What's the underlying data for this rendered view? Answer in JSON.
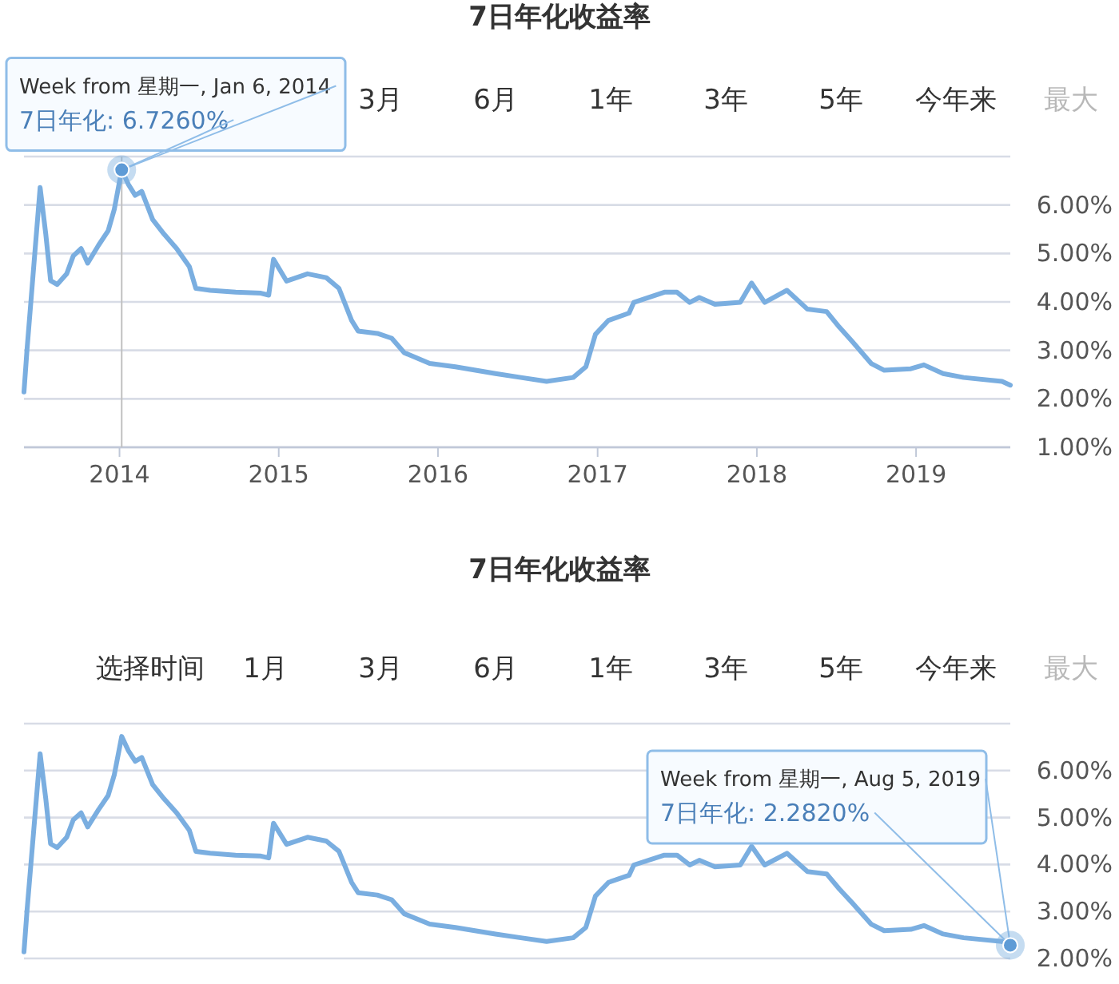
{
  "chart_data": [
    {
      "type": "line",
      "title": "7日年化收益率",
      "grid": "y",
      "marker": "none",
      "line_style": "solid",
      "annotations": [
        "3月",
        "6月",
        "1年",
        "3年",
        "5年",
        "今年来",
        "最大",
        {
          "text": "Week from 星期一, Jan 6, 2014",
          "x": "2014-01-06",
          "y": 6.726
        },
        {
          "text": "7日年化: 6.7260%",
          "x": "2014-01-06",
          "y": 6.726
        }
      ],
      "ref_lines": [
        {
          "axis": "x",
          "value": "2014-01-06",
          "color": "#c0c0c0"
        }
      ],
      "xlim": [
        "2013-05-27",
        "2019-08-05"
      ],
      "xticks": [
        {
          "value": "2014-01-01",
          "label": "2014"
        },
        {
          "value": "2015-01-01",
          "label": "2015"
        },
        {
          "value": "2016-01-01",
          "label": "2016"
        },
        {
          "value": "2017-01-01",
          "label": "2017"
        },
        {
          "value": "2018-01-01",
          "label": "2018"
        },
        {
          "value": "2019-01-01",
          "label": "2019"
        }
      ],
      "ylim": [
        1,
        7
      ],
      "yticks": [
        {
          "value": 1,
          "label": "1.00%"
        },
        {
          "value": 2,
          "label": "2.00%"
        },
        {
          "value": 3,
          "label": "3.00%"
        },
        {
          "value": 4,
          "label": "4.00%"
        },
        {
          "value": 5,
          "label": "5.00%"
        },
        {
          "value": 6,
          "label": "6.00%"
        },
        {
          "value": 7,
          "label": null
        }
      ],
      "x": [
        "2013-05-27",
        "2013-06-03",
        "2013-07-03",
        "2013-07-16",
        "2013-07-27",
        "2013-08-11",
        "2013-09-02",
        "2013-09-17",
        "2013-10-05",
        "2013-10-20",
        "2013-11-14",
        "2013-12-06",
        "2013-12-20",
        "2014-01-06",
        "2014-01-21",
        "2014-02-06",
        "2014-02-21",
        "2014-03-18",
        "2014-04-13",
        "2014-05-12",
        "2014-06-10",
        "2014-06-25",
        "2014-07-28",
        "2014-09-24",
        "2014-11-21",
        "2014-12-09",
        "2014-12-20",
        "2015-01-19",
        "2015-03-08",
        "2015-04-20",
        "2015-05-19",
        "2015-06-17",
        "2015-07-02",
        "2015-08-15",
        "2015-09-17",
        "2015-10-16",
        "2015-12-13",
        "2016-02-10",
        "2016-05-12",
        "2016-07-09",
        "2016-09-06",
        "2016-11-06",
        "2016-12-05",
        "2016-12-27",
        "2017-01-26",
        "2017-03-14",
        "2017-03-25",
        "2017-06-03",
        "2017-07-02",
        "2017-07-31",
        "2017-08-22",
        "2017-09-27",
        "2017-11-24",
        "2017-12-20",
        "2018-01-19",
        "2018-03-11",
        "2018-04-27",
        "2018-06-10",
        "2018-07-09",
        "2018-08-08",
        "2018-09-20",
        "2018-10-20",
        "2018-12-20",
        "2019-01-19",
        "2019-03-04",
        "2019-04-20",
        "2019-07-17",
        "2019-08-05"
      ],
      "series": [
        {
          "color": "#7aaee0",
          "values": [
            2.14,
            3.02,
            6.36,
            5.4,
            4.44,
            4.36,
            4.58,
            4.95,
            5.1,
            4.8,
            5.17,
            5.47,
            5.91,
            6.726,
            6.43,
            6.2,
            6.28,
            5.7,
            5.4,
            5.1,
            4.73,
            4.28,
            4.24,
            4.2,
            4.18,
            4.14,
            4.88,
            4.43,
            4.58,
            4.5,
            4.28,
            3.62,
            3.4,
            3.35,
            3.25,
            2.95,
            2.73,
            2.66,
            2.52,
            2.44,
            2.36,
            2.44,
            2.66,
            3.33,
            3.62,
            3.77,
            3.99,
            4.2,
            4.2,
            3.99,
            4.09,
            3.95,
            3.99,
            4.39,
            3.99,
            4.24,
            3.85,
            3.8,
            3.48,
            3.18,
            2.73,
            2.59,
            2.62,
            2.7,
            2.52,
            2.44,
            2.36,
            2.282
          ]
        }
      ]
    },
    {
      "type": "line",
      "title": "7日年化收益率",
      "grid": "y",
      "marker": "none",
      "line_style": "solid",
      "tick_labels": "y",
      "annotations": [
        "选择时间",
        "1月",
        "3月",
        "6月",
        "1年",
        "3年",
        "5年",
        "今年来",
        "最大",
        {
          "text": "Week from 星期一, Aug 5, 2019",
          "x": "2019-08-05",
          "y": 2.282
        },
        {
          "text": "7日年化: 2.2820%",
          "x": "2019-08-05",
          "y": 2.282
        }
      ],
      "xlim": [
        "2013-05-27",
        "2019-08-05"
      ],
      "ylim": [
        2,
        7
      ],
      "yticks": [
        {
          "value": 2,
          "label": "2.00%"
        },
        {
          "value": 3,
          "label": "3.00%"
        },
        {
          "value": 4,
          "label": "4.00%"
        },
        {
          "value": 5,
          "label": "5.00%"
        },
        {
          "value": 6,
          "label": "6.00%"
        },
        {
          "value": 7,
          "label": null
        }
      ],
      "x": [
        "2013-05-27",
        "2013-06-03",
        "2013-07-03",
        "2013-07-16",
        "2013-07-27",
        "2013-08-11",
        "2013-09-02",
        "2013-09-17",
        "2013-10-05",
        "2013-10-20",
        "2013-11-14",
        "2013-12-06",
        "2013-12-20",
        "2014-01-06",
        "2014-01-21",
        "2014-02-06",
        "2014-02-21",
        "2014-03-18",
        "2014-04-13",
        "2014-05-12",
        "2014-06-10",
        "2014-06-25",
        "2014-07-28",
        "2014-09-24",
        "2014-11-21",
        "2014-12-09",
        "2014-12-20",
        "2015-01-19",
        "2015-03-08",
        "2015-04-20",
        "2015-05-19",
        "2015-06-17",
        "2015-07-02",
        "2015-08-15",
        "2015-09-17",
        "2015-10-16",
        "2015-12-13",
        "2016-02-10",
        "2016-05-12",
        "2016-07-09",
        "2016-09-06",
        "2016-11-06",
        "2016-12-05",
        "2016-12-27",
        "2017-01-26",
        "2017-03-14",
        "2017-03-25",
        "2017-06-03",
        "2017-07-02",
        "2017-07-31",
        "2017-08-22",
        "2017-09-27",
        "2017-11-24",
        "2017-12-20",
        "2018-01-19",
        "2018-03-11",
        "2018-04-27",
        "2018-06-10",
        "2018-07-09",
        "2018-08-08",
        "2018-09-20",
        "2018-10-20",
        "2018-12-20",
        "2019-01-19",
        "2019-03-04",
        "2019-04-20",
        "2019-07-17",
        "2019-08-05"
      ],
      "series": [
        {
          "color": "#7aaee0",
          "values": [
            2.14,
            3.02,
            6.36,
            5.4,
            4.44,
            4.36,
            4.58,
            4.95,
            5.1,
            4.8,
            5.17,
            5.47,
            5.91,
            6.726,
            6.43,
            6.2,
            6.28,
            5.7,
            5.4,
            5.1,
            4.73,
            4.28,
            4.24,
            4.2,
            4.18,
            4.14,
            4.88,
            4.43,
            4.58,
            4.5,
            4.28,
            3.62,
            3.4,
            3.35,
            3.25,
            2.95,
            2.73,
            2.66,
            2.52,
            2.44,
            2.36,
            2.44,
            2.66,
            3.33,
            3.62,
            3.77,
            3.99,
            4.2,
            4.2,
            3.99,
            4.09,
            3.95,
            3.99,
            4.39,
            3.99,
            4.24,
            3.85,
            3.8,
            3.48,
            3.18,
            2.73,
            2.59,
            2.62,
            2.7,
            2.52,
            2.44,
            2.36,
            2.282
          ]
        }
      ]
    }
  ]
}
